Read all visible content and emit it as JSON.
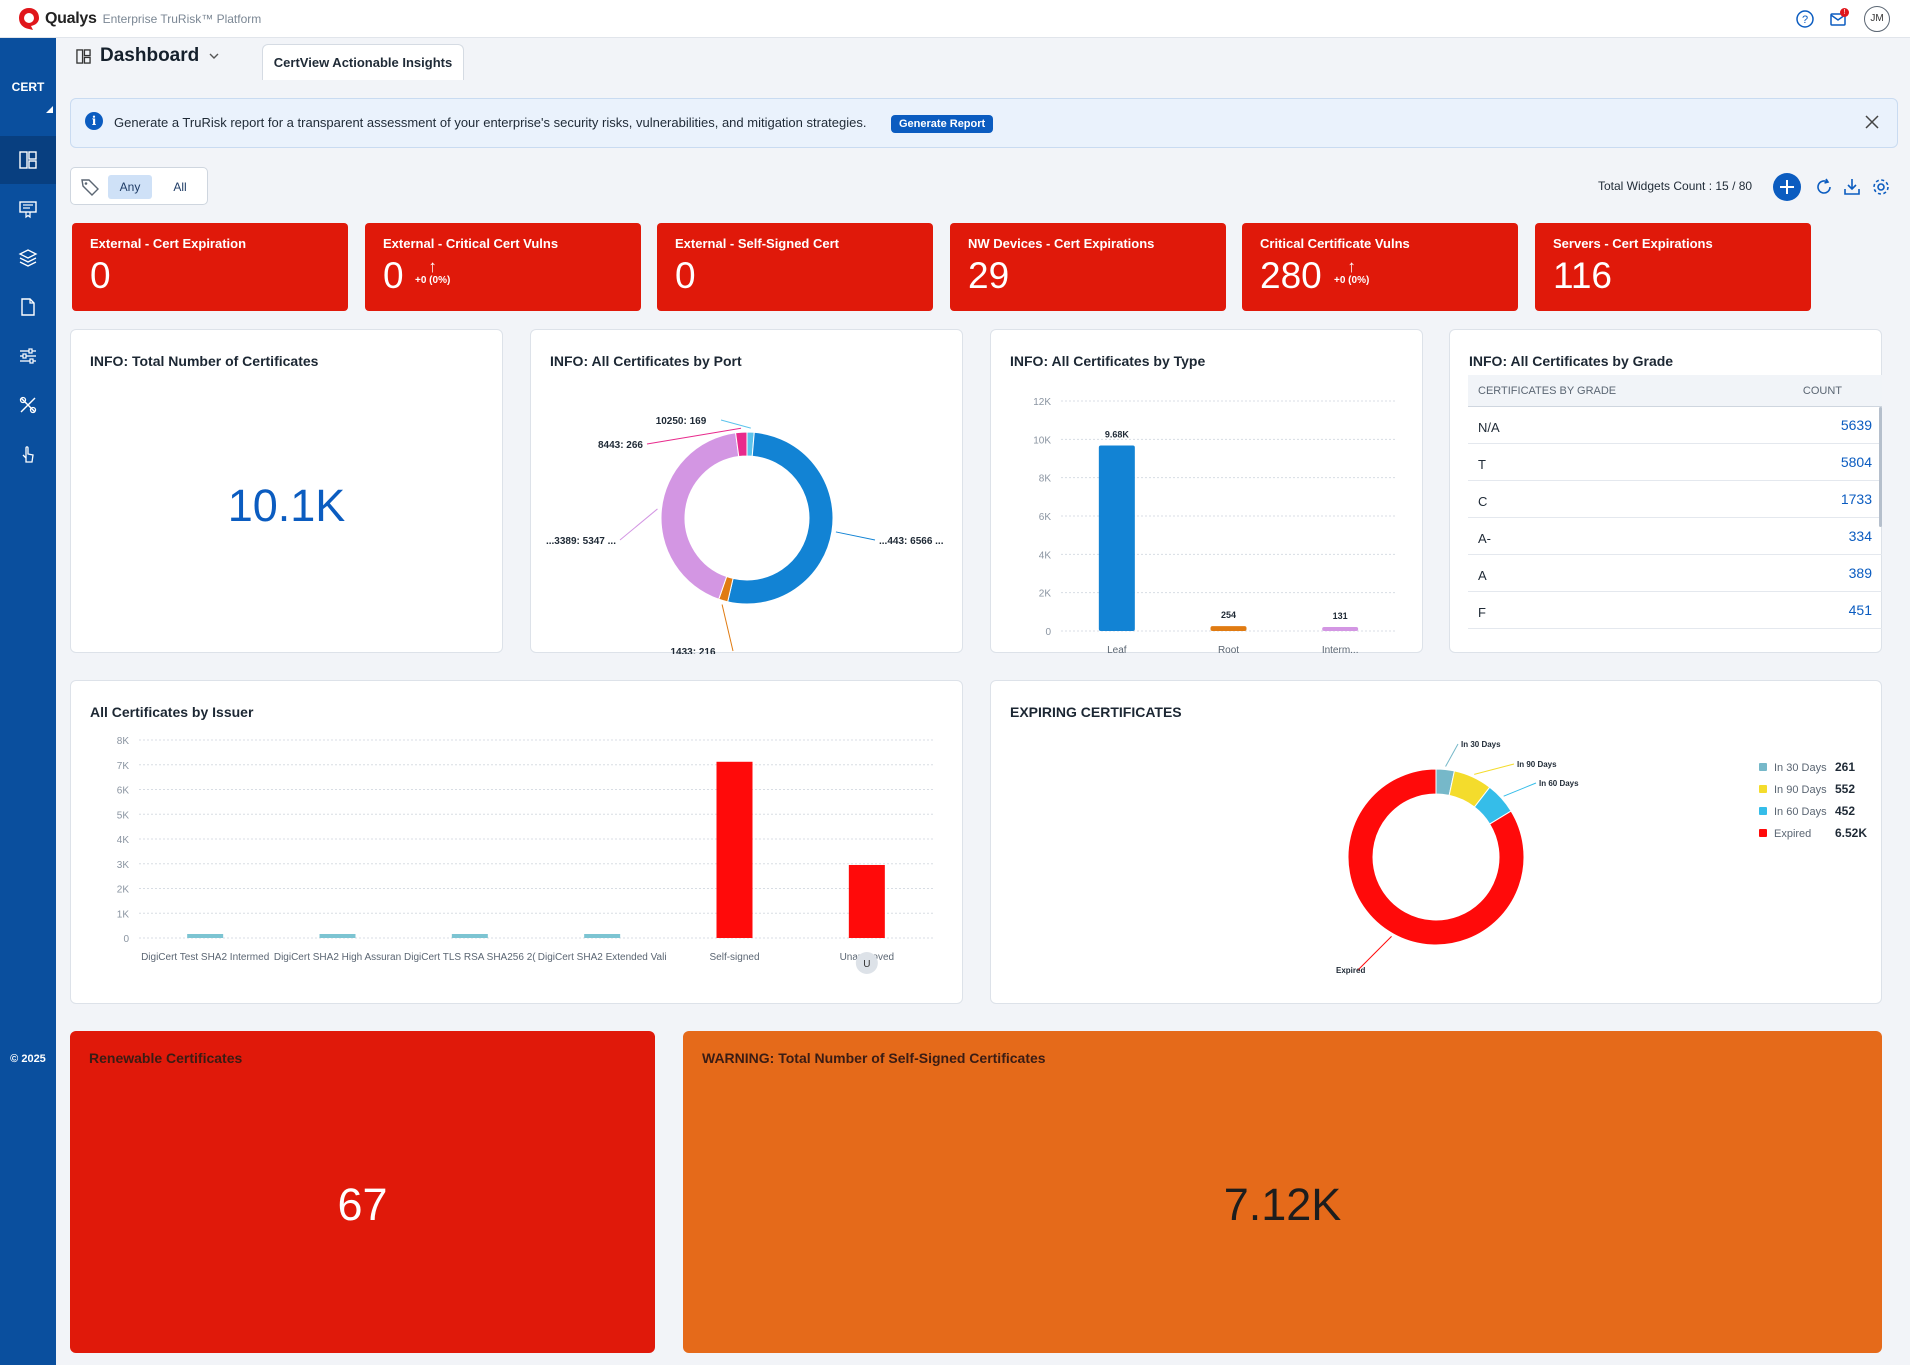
{
  "app": {
    "brand": "Qualys",
    "product": "Enterprise TruRisk™ Platform",
    "user_initials": "JM",
    "module": "CERT",
    "copyright": "© 2025"
  },
  "dashboard": {
    "title": "Dashboard",
    "tab": "CertView Actionable Insights"
  },
  "banner": {
    "message": "Generate a TruRisk report for a transparent assessment of your enterprise's security risks, vulnerabilities, and mitigation strategies.",
    "button": "Generate Report"
  },
  "tag_filter": {
    "options": [
      "Any",
      "All"
    ],
    "selected": "Any"
  },
  "widget_count": "Total Widgets Count : 15 / 80",
  "kpis": [
    {
      "label": "External - Cert Expiration",
      "value": "0",
      "trend": ""
    },
    {
      "label": "External - Critical Cert Vulns",
      "value": "0",
      "trend": "+0 (0%)"
    },
    {
      "label": "External - Self-Signed Cert",
      "value": "0",
      "trend": ""
    },
    {
      "label": "NW Devices - Cert Expirations",
      "value": "29",
      "trend": ""
    },
    {
      "label": "Critical Certificate Vulns",
      "value": "280",
      "trend": "+0 (0%)"
    },
    {
      "label": "Servers - Cert Expirations",
      "value": "116",
      "trend": ""
    }
  ],
  "total_certs": {
    "title": "INFO: Total Number of Certificates",
    "value": "10.1K"
  },
  "grade_table": {
    "title": "INFO: All Certificates by Grade",
    "col_grade": "CERTIFICATES BY GRADE",
    "col_count": "COUNT",
    "rows": [
      {
        "grade": "N/A",
        "count": "5639"
      },
      {
        "grade": "T",
        "count": "5804"
      },
      {
        "grade": "C",
        "count": "1733"
      },
      {
        "grade": "A-",
        "count": "334"
      },
      {
        "grade": "A",
        "count": "389"
      },
      {
        "grade": "F",
        "count": "451"
      }
    ]
  },
  "renewable": {
    "title": "Renewable Certificates",
    "value": "67"
  },
  "self_signed": {
    "title": "WARNING: Total Number of Self-Signed Certificates",
    "value": "7.12K"
  },
  "chart_data": [
    {
      "id": "by-port",
      "type": "pie",
      "title": "INFO: All Certificates by Port",
      "slices": [
        {
          "label": "10250: 169",
          "value": 169,
          "color": "#5cc3ec"
        },
        {
          "label": "...443: 6566 ...",
          "value": 6566,
          "color": "#1283d4"
        },
        {
          "label": "1433: 216",
          "value": 216,
          "color": "#e07b12"
        },
        {
          "label": "...3389: 5347 ...",
          "value": 5347,
          "color": "#d396e3"
        },
        {
          "label": "8443: 266",
          "value": 266,
          "color": "#e82a8c"
        }
      ]
    },
    {
      "id": "by-type",
      "type": "bar",
      "title": "INFO: All Certificates by Type",
      "categories": [
        "Leaf",
        "Root",
        "Interm..."
      ],
      "values": [
        9680,
        254,
        131
      ],
      "data_labels": [
        "9.68K",
        "254",
        "131"
      ],
      "colors": [
        "#1283d4",
        "#e07b12",
        "#d396e3"
      ],
      "yticks": [
        "0",
        "2K",
        "4K",
        "6K",
        "8K",
        "10K",
        "12K"
      ],
      "ylim": [
        0,
        12000
      ]
    },
    {
      "id": "by-issuer",
      "type": "bar",
      "title": "All Certificates by Issuer",
      "categories": [
        "DigiCert Test SHA2 Intermedi...",
        "DigiCert SHA2 High Assuranc...",
        "DigiCert TLS RSA SHA256 20...",
        "DigiCert SHA2 Extended Vali...",
        "Self-signed",
        "Unapproved"
      ],
      "visible_labels": [
        "DigiCert Test SHA2 Intermed",
        "DigiCert SHA2 High Assuran",
        "DigiCert TLS RSA SHA256 2(",
        "DigiCert SHA2 Extended Vali",
        "Self-signed",
        "Unapproved"
      ],
      "values": [
        20,
        20,
        20,
        20,
        7120,
        2950
      ],
      "colors": [
        "#7cc4d2",
        "#7cc4d2",
        "#7cc4d2",
        "#7cc4d2",
        "#ff0a0a",
        "#ff0a0a"
      ],
      "badge": "U",
      "yticks": [
        "0",
        "1K",
        "2K",
        "3K",
        "4K",
        "5K",
        "6K",
        "7K",
        "8K"
      ],
      "ylim": [
        0,
        8000
      ]
    },
    {
      "id": "expiring",
      "type": "pie",
      "title": "EXPIRING CERTIFICATES",
      "slices": [
        {
          "label": "In 30 Days",
          "value": 261,
          "display": "261",
          "color": "#76b8c9"
        },
        {
          "label": "In 90 Days",
          "value": 552,
          "display": "552",
          "color": "#f4dc2c"
        },
        {
          "label": "In 60 Days",
          "value": 452,
          "display": "452",
          "color": "#35bde9"
        },
        {
          "label": "Expired",
          "value": 6520,
          "display": "6.52K",
          "color": "#ff0a0a"
        }
      ]
    }
  ]
}
